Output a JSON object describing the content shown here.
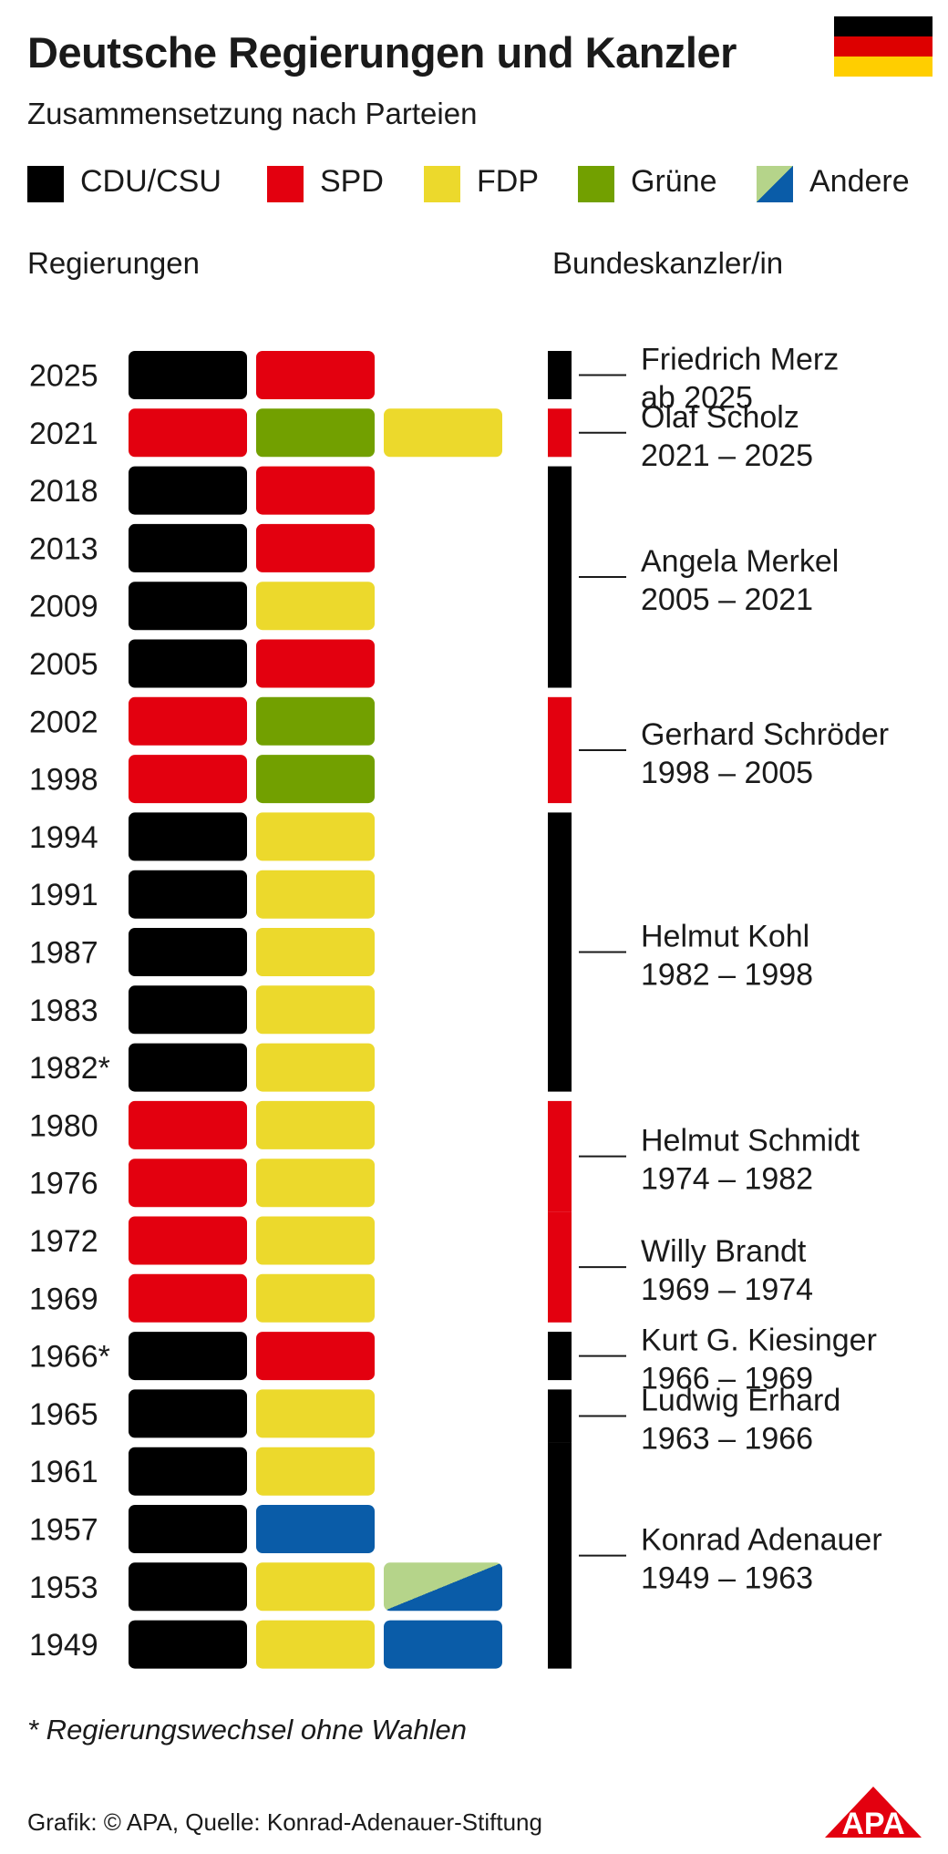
{
  "title": "Deutsche Regierungen und Kanzler",
  "subtitle": "Zusammensetzung nach Parteien",
  "legend": [
    {
      "label": "CDU/CSU",
      "color": "#000000"
    },
    {
      "label": "SPD",
      "color": "#e3000f"
    },
    {
      "label": "FDP",
      "color": "#ecd92c"
    },
    {
      "label": "Grüne",
      "color": "#72a000"
    },
    {
      "label": "Andere",
      "color": "#0a5ca8",
      "color2": "#b5d48a"
    }
  ],
  "column_headers": {
    "left": "Regierungen",
    "right": "Bundeskanzler/in"
  },
  "chart_data": {
    "type": "table",
    "governments": [
      {
        "year": "2025",
        "parties": [
          "CDU/CSU",
          "SPD"
        ]
      },
      {
        "year": "2021",
        "parties": [
          "SPD",
          "Grüne",
          "FDP"
        ]
      },
      {
        "year": "2018",
        "parties": [
          "CDU/CSU",
          "SPD"
        ]
      },
      {
        "year": "2013",
        "parties": [
          "CDU/CSU",
          "SPD"
        ]
      },
      {
        "year": "2009",
        "parties": [
          "CDU/CSU",
          "FDP"
        ]
      },
      {
        "year": "2005",
        "parties": [
          "CDU/CSU",
          "SPD"
        ]
      },
      {
        "year": "2002",
        "parties": [
          "SPD",
          "Grüne"
        ]
      },
      {
        "year": "1998",
        "parties": [
          "SPD",
          "Grüne"
        ]
      },
      {
        "year": "1994",
        "parties": [
          "CDU/CSU",
          "FDP"
        ]
      },
      {
        "year": "1991",
        "parties": [
          "CDU/CSU",
          "FDP"
        ]
      },
      {
        "year": "1987",
        "parties": [
          "CDU/CSU",
          "FDP"
        ]
      },
      {
        "year": "1983",
        "parties": [
          "CDU/CSU",
          "FDP"
        ]
      },
      {
        "year": "1982*",
        "parties": [
          "CDU/CSU",
          "FDP"
        ]
      },
      {
        "year": "1980",
        "parties": [
          "SPD",
          "FDP"
        ]
      },
      {
        "year": "1976",
        "parties": [
          "SPD",
          "FDP"
        ]
      },
      {
        "year": "1972",
        "parties": [
          "SPD",
          "FDP"
        ]
      },
      {
        "year": "1969",
        "parties": [
          "SPD",
          "FDP"
        ]
      },
      {
        "year": "1966*",
        "parties": [
          "CDU/CSU",
          "SPD"
        ]
      },
      {
        "year": "1965",
        "parties": [
          "CDU/CSU",
          "FDP"
        ]
      },
      {
        "year": "1961",
        "parties": [
          "CDU/CSU",
          "FDP"
        ]
      },
      {
        "year": "1957",
        "parties": [
          "CDU/CSU",
          "Andere"
        ]
      },
      {
        "year": "1953",
        "parties": [
          "CDU/CSU",
          "FDP",
          "Andere"
        ]
      },
      {
        "year": "1949",
        "parties": [
          "CDU/CSU",
          "FDP",
          "Andere"
        ]
      }
    ],
    "chancellors": [
      {
        "name": "Friedrich Merz",
        "term": "ab 2025",
        "party": "CDU/CSU",
        "from_year": "2025",
        "to_year": "2025"
      },
      {
        "name": "Olaf Scholz",
        "term": "2021 – 2025",
        "party": "SPD",
        "from_year": "2021",
        "to_year": "2021"
      },
      {
        "name": "Angela Merkel",
        "term": "2005 – 2021",
        "party": "CDU/CSU",
        "from_year": "2005",
        "to_year": "2018"
      },
      {
        "name": "Gerhard Schröder",
        "term": "1998 – 2005",
        "party": "SPD",
        "from_year": "1998",
        "to_year": "2002"
      },
      {
        "name": "Helmut Kohl",
        "term": "1982 – 1998",
        "party": "CDU/CSU",
        "from_year": "1982*",
        "to_year": "1994"
      },
      {
        "name": "Helmut Schmidt",
        "term": "1974 – 1982",
        "party": "SPD",
        "from_year": "1974",
        "to_year": "1980"
      },
      {
        "name": "Willy Brandt",
        "term": "1969 – 1974",
        "party": "SPD",
        "from_year": "1969",
        "to_year": "1974"
      },
      {
        "name": "Kurt G. Kiesinger",
        "term": "1966 – 1969",
        "party": "CDU/CSU",
        "from_year": "1966*",
        "to_year": "1966*"
      },
      {
        "name": "Ludwig Erhard",
        "term": "1963 – 1966",
        "party": "CDU/CSU",
        "from_year": "1963",
        "to_year": "1965"
      },
      {
        "name": "Konrad Adenauer",
        "term": "1949 – 1963",
        "party": "CDU/CSU",
        "from_year": "1949",
        "to_year": "1963"
      }
    ]
  },
  "footnote": "* Regierungswechsel ohne Wahlen",
  "source": "Grafik: © APA, Quelle: Konrad-Adenauer-Stiftung",
  "logo": {
    "text": "APA",
    "color": "#e3000f"
  },
  "flag_colors": [
    "#000000",
    "#dd0000",
    "#ffce00"
  ]
}
